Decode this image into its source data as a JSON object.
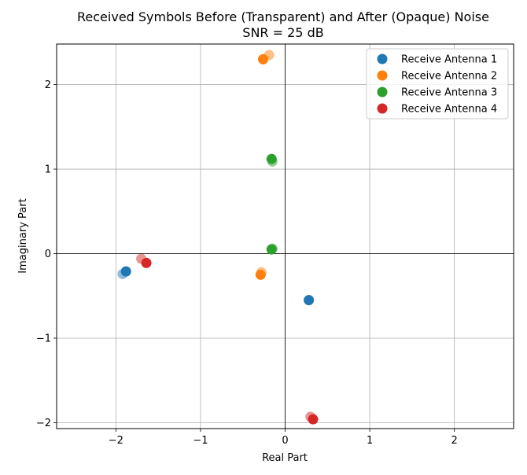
{
  "chart_data": {
    "type": "scatter",
    "title": "Received Symbols Before (Transparent) and After (Opaque) Noise",
    "subtitle": "SNR = 25 dB",
    "xlabel": "Real Part",
    "ylabel": "Imaginary Part",
    "xlim": [
      -2.7,
      2.7
    ],
    "ylim": [
      -2.07,
      2.48
    ],
    "xticks": [
      -2,
      -1,
      0,
      1,
      2
    ],
    "yticks": [
      -2,
      -1,
      0,
      1,
      2
    ],
    "xtick_labels": [
      "−2",
      "−1",
      "0",
      "1",
      "2"
    ],
    "ytick_labels": [
      "−2",
      "−1",
      "0",
      "1",
      "2"
    ],
    "grid": true,
    "zero_lines": true,
    "legend_position": "top-right",
    "series": [
      {
        "name": "Receive Antenna 1",
        "color": "#1f77b4",
        "before": [
          {
            "x": -1.92,
            "y": -0.24
          },
          {
            "x": 0.28,
            "y": -0.55
          }
        ],
        "after": [
          {
            "x": -1.88,
            "y": -0.21
          },
          {
            "x": 0.28,
            "y": -0.55
          }
        ]
      },
      {
        "name": "Receive Antenna 2",
        "color": "#ff7f0e",
        "before": [
          {
            "x": -0.19,
            "y": 2.35
          },
          {
            "x": -0.28,
            "y": -0.22
          }
        ],
        "after": [
          {
            "x": -0.26,
            "y": 2.3
          },
          {
            "x": -0.29,
            "y": -0.25
          }
        ]
      },
      {
        "name": "Receive Antenna 3",
        "color": "#2ca02c",
        "before": [
          {
            "x": -0.15,
            "y": 1.09
          },
          {
            "x": -0.15,
            "y": 0.06
          }
        ],
        "after": [
          {
            "x": -0.16,
            "y": 1.12
          },
          {
            "x": -0.16,
            "y": 0.05
          }
        ]
      },
      {
        "name": "Receive Antenna 4",
        "color": "#d62728",
        "before": [
          {
            "x": -1.7,
            "y": -0.06
          },
          {
            "x": 0.3,
            "y": -1.93
          }
        ],
        "after": [
          {
            "x": -1.64,
            "y": -0.11
          },
          {
            "x": 0.33,
            "y": -1.96
          }
        ]
      }
    ]
  }
}
